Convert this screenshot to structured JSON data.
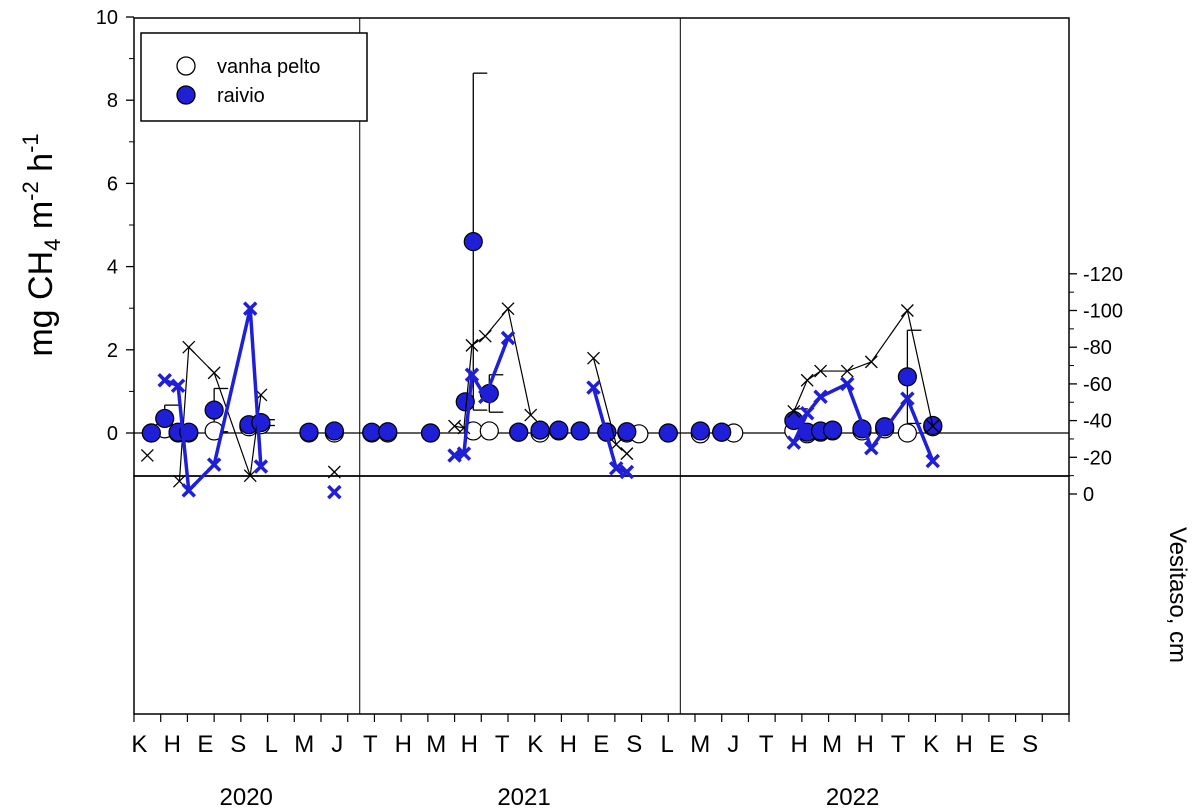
{
  "chart_data": [
    {
      "type": "scatter",
      "ylabel": {
        "prefix": "mg CH",
        "sub": "4",
        "mid": " m",
        "sup1": "-2",
        "mid2": " h",
        "sup2": "-1"
      },
      "ylim": [
        -1,
        10
      ],
      "yticks": [
        0,
        2,
        4,
        6,
        8,
        10
      ],
      "legend": {
        "placement": "top-left",
        "entries": [
          "vanha pelto",
          "raivio"
        ]
      },
      "x_axis": {
        "unit": "months",
        "range": [
          0,
          35
        ],
        "month_labels": [
          "K",
          "H",
          "E",
          "S",
          "L",
          "M",
          "J",
          "T",
          "H",
          "M",
          "H",
          "T",
          "K",
          "H",
          "E",
          "S",
          "L",
          "M",
          "J",
          "T",
          "H",
          "M",
          "H",
          "T",
          "K",
          "H",
          "E",
          "S"
        ],
        "year_labels": [
          "2020",
          "2021",
          "2022"
        ],
        "year_dividers": [
          8.45,
          20.45
        ]
      },
      "series": [
        {
          "name": "vanha pelto",
          "marker": "open-circle",
          "color": "#ffffff",
          "points": [
            {
              "x": 0.65,
              "y": 0.0
            },
            {
              "x": 1.15,
              "y": 0.1
            },
            {
              "x": 1.65,
              "y": 0.0
            },
            {
              "x": 2.05,
              "y": 0.0
            },
            {
              "x": 3.0,
              "y": 0.05
            },
            {
              "x": 4.3,
              "y": 0.15
            },
            {
              "x": 4.75,
              "y": 0.2
            },
            {
              "x": 6.55,
              "y": 0.0
            },
            {
              "x": 7.5,
              "y": 0.0
            },
            {
              "x": 8.9,
              "y": 0.0
            },
            {
              "x": 9.5,
              "y": 0.0
            },
            {
              "x": 11.1,
              "y": 0.0
            },
            {
              "x": 12.7,
              "y": 0.05
            },
            {
              "x": 13.3,
              "y": 0.05
            },
            {
              "x": 14.4,
              "y": 0.02
            },
            {
              "x": 15.2,
              "y": 0.0
            },
            {
              "x": 15.9,
              "y": 0.05
            },
            {
              "x": 16.7,
              "y": 0.05
            },
            {
              "x": 17.7,
              "y": 0.02
            },
            {
              "x": 18.45,
              "y": 0.0
            },
            {
              "x": 18.9,
              "y": -0.02
            },
            {
              "x": 20.0,
              "y": 0.0
            },
            {
              "x": 21.2,
              "y": -0.02
            },
            {
              "x": 22.0,
              "y": 0.02
            },
            {
              "x": 22.45,
              "y": 0.0
            },
            {
              "x": 24.7,
              "y": 0.05
            },
            {
              "x": 25.2,
              "y": -0.02
            },
            {
              "x": 25.7,
              "y": 0.02
            },
            {
              "x": 26.15,
              "y": 0.05
            },
            {
              "x": 27.25,
              "y": 0.05
            },
            {
              "x": 28.1,
              "y": 0.1
            },
            {
              "x": 28.95,
              "y": 0.0
            },
            {
              "x": 29.9,
              "y": 0.15
            }
          ]
        },
        {
          "name": "raivio",
          "marker": "filled-circle",
          "color": "#1f1fd8",
          "points": [
            {
              "x": 0.65,
              "y": 0.0
            },
            {
              "x": 1.15,
              "y": 0.35,
              "err": 0.32
            },
            {
              "x": 1.65,
              "y": 0.02
            },
            {
              "x": 2.05,
              "y": 0.02
            },
            {
              "x": 3.0,
              "y": 0.55,
              "err": 0.52
            },
            {
              "x": 4.3,
              "y": 0.2,
              "err": 0.08
            },
            {
              "x": 4.75,
              "y": 0.25,
              "err": 0.07
            },
            {
              "x": 6.55,
              "y": 0.02
            },
            {
              "x": 7.5,
              "y": 0.05
            },
            {
              "x": 8.9,
              "y": 0.02
            },
            {
              "x": 9.5,
              "y": 0.03
            },
            {
              "x": 11.1,
              "y": 0.0
            },
            {
              "x": 12.4,
              "y": 0.75
            },
            {
              "x": 12.7,
              "y": 4.6,
              "err": 4.05
            },
            {
              "x": 13.3,
              "y": 0.95,
              "err": 0.45
            },
            {
              "x": 14.4,
              "y": 0.02
            },
            {
              "x": 15.2,
              "y": 0.07
            },
            {
              "x": 15.9,
              "y": 0.07
            },
            {
              "x": 16.7,
              "y": 0.05
            },
            {
              "x": 17.7,
              "y": 0.02
            },
            {
              "x": 18.45,
              "y": 0.03
            },
            {
              "x": 20.0,
              "y": 0.0
            },
            {
              "x": 21.2,
              "y": 0.05
            },
            {
              "x": 22.0,
              "y": 0.02
            },
            {
              "x": 24.7,
              "y": 0.3,
              "err": 0.28
            },
            {
              "x": 25.2,
              "y": 0.02
            },
            {
              "x": 25.7,
              "y": 0.05
            },
            {
              "x": 26.15,
              "y": 0.07
            },
            {
              "x": 27.25,
              "y": 0.1
            },
            {
              "x": 28.1,
              "y": 0.15
            },
            {
              "x": 28.95,
              "y": 1.35,
              "err": 1.12
            },
            {
              "x": 29.9,
              "y": 0.18
            }
          ]
        }
      ]
    },
    {
      "type": "line",
      "ylabel": "Vesitaso, cm",
      "ylim": [
        -120,
        5
      ],
      "yticks": [
        0,
        -20,
        -40,
        -60,
        -80,
        -100,
        -120
      ],
      "series": [
        {
          "name": "vanha pelto",
          "marker": "x",
          "color": "#000000",
          "segments": [
            [
              {
                "x": 0.5,
                "y": -21
              }
            ],
            [
              {
                "x": 1.7,
                "y": -7
              },
              {
                "x": 2.05,
                "y": -80
              },
              {
                "x": 3.0,
                "y": -66
              },
              {
                "x": 4.35,
                "y": -10
              },
              {
                "x": 4.75,
                "y": -54
              }
            ],
            [
              {
                "x": 7.5,
                "y": -12
              }
            ],
            [
              {
                "x": 12.0,
                "y": -37
              },
              {
                "x": 12.35,
                "y": -36
              },
              {
                "x": 12.65,
                "y": -81
              },
              {
                "x": 13.15,
                "y": -86
              },
              {
                "x": 14.0,
                "y": -101
              },
              {
                "x": 14.85,
                "y": -43
              }
            ],
            [
              {
                "x": 17.2,
                "y": -74
              },
              {
                "x": 18.05,
                "y": -27
              },
              {
                "x": 18.45,
                "y": -22
              }
            ],
            [
              {
                "x": 24.7,
                "y": -45
              },
              {
                "x": 25.2,
                "y": -62
              },
              {
                "x": 25.7,
                "y": -67
              },
              {
                "x": 26.7,
                "y": -67
              },
              {
                "x": 27.6,
                "y": -72
              },
              {
                "x": 28.95,
                "y": -100
              },
              {
                "x": 29.9,
                "y": -37
              }
            ]
          ]
        },
        {
          "name": "raivio",
          "marker": "x",
          "color": "#1f1fd8",
          "segments": [
            [
              {
                "x": 1.15,
                "y": -62
              },
              {
                "x": 1.65,
                "y": -59
              },
              {
                "x": 2.05,
                "y": -2
              },
              {
                "x": 3.0,
                "y": -16
              },
              {
                "x": 4.35,
                "y": -101
              },
              {
                "x": 4.75,
                "y": -15
              }
            ],
            [
              {
                "x": 7.5,
                "y": -1
              }
            ],
            [
              {
                "x": 12.0,
                "y": -21
              },
              {
                "x": 12.35,
                "y": -22
              },
              {
                "x": 12.65,
                "y": -65
              },
              {
                "x": 13.15,
                "y": -53
              },
              {
                "x": 14.0,
                "y": -85
              }
            ],
            [
              {
                "x": 17.2,
                "y": -58
              },
              {
                "x": 18.05,
                "y": -14
              },
              {
                "x": 18.45,
                "y": -12
              }
            ],
            [
              {
                "x": 24.7,
                "y": -28
              },
              {
                "x": 25.2,
                "y": -44
              },
              {
                "x": 25.7,
                "y": -53
              },
              {
                "x": 26.7,
                "y": -60
              },
              {
                "x": 27.6,
                "y": -25
              },
              {
                "x": 28.95,
                "y": -52
              },
              {
                "x": 29.9,
                "y": -18
              }
            ]
          ]
        }
      ]
    }
  ]
}
